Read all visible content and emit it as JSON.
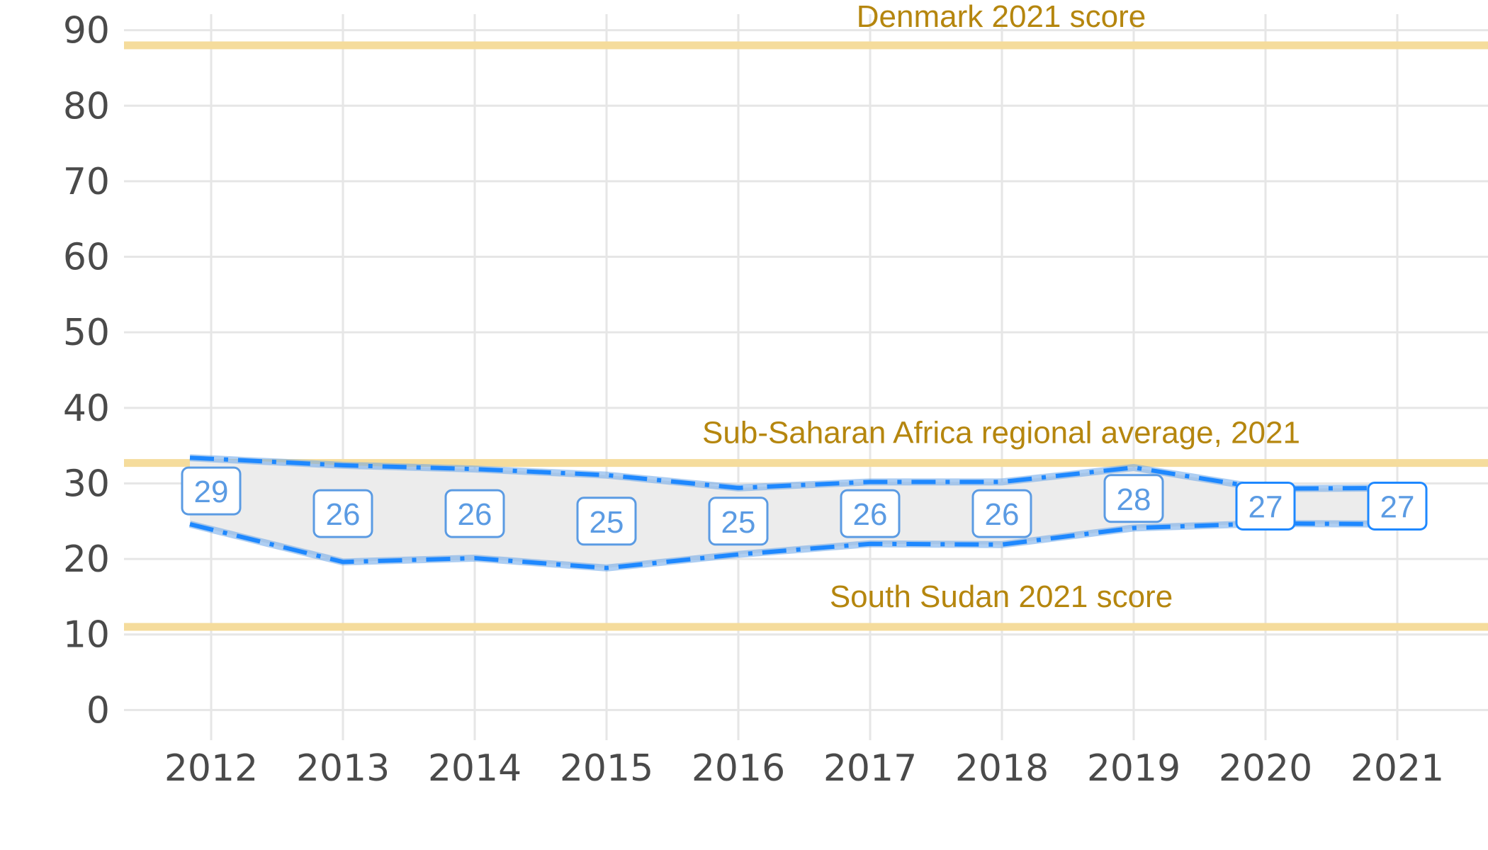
{
  "chart_data": {
    "type": "line",
    "title": "",
    "xlabel": "",
    "ylabel": "",
    "x": [
      2012,
      2013,
      2014,
      2015,
      2016,
      2017,
      2018,
      2019,
      2020,
      2021
    ],
    "x_tick_labels": [
      "2012",
      "2013",
      "2014",
      "2015",
      "2016",
      "2017",
      "2018",
      "2019",
      "2020",
      "2021"
    ],
    "y_tick_labels": [
      "0",
      "10",
      "20",
      "30",
      "40",
      "50",
      "60",
      "70",
      "80",
      "90"
    ],
    "ylim": [
      -4,
      94
    ],
    "grid": true,
    "series": [
      {
        "values": [
          29,
          26,
          26,
          25,
          25,
          26,
          26,
          28,
          27,
          27
        ],
        "labels": [
          "29",
          "26",
          "26",
          "25",
          "25",
          "26",
          "26",
          "28",
          "27",
          "27"
        ],
        "upper": [
          33.4,
          32.4,
          31.9,
          31.1,
          29.4,
          30.2,
          30.2,
          32.1,
          29.3,
          29.4
        ],
        "lower": [
          24.6,
          19.6,
          20.1,
          18.8,
          20.6,
          22.0,
          21.9,
          24.1,
          24.7,
          24.6
        ]
      }
    ],
    "reference_lines": [
      {
        "value": 88,
        "label": "Denmark 2021 score"
      },
      {
        "value": 32.7,
        "label": "Sub-Saharan Africa regional average, 2021"
      },
      {
        "value": 11,
        "label": "South Sudan 2021 score"
      }
    ],
    "colors": {
      "reference_line": "#f5dc9c",
      "reference_text": "#b5860e",
      "band_fill": "#ececec",
      "interval_line": "#1e88ff",
      "label_text": "#5b9be3",
      "label_border": "#5b9be3",
      "label_border_highlight": "#1e88ff",
      "grid": "#e6e6e6"
    }
  }
}
